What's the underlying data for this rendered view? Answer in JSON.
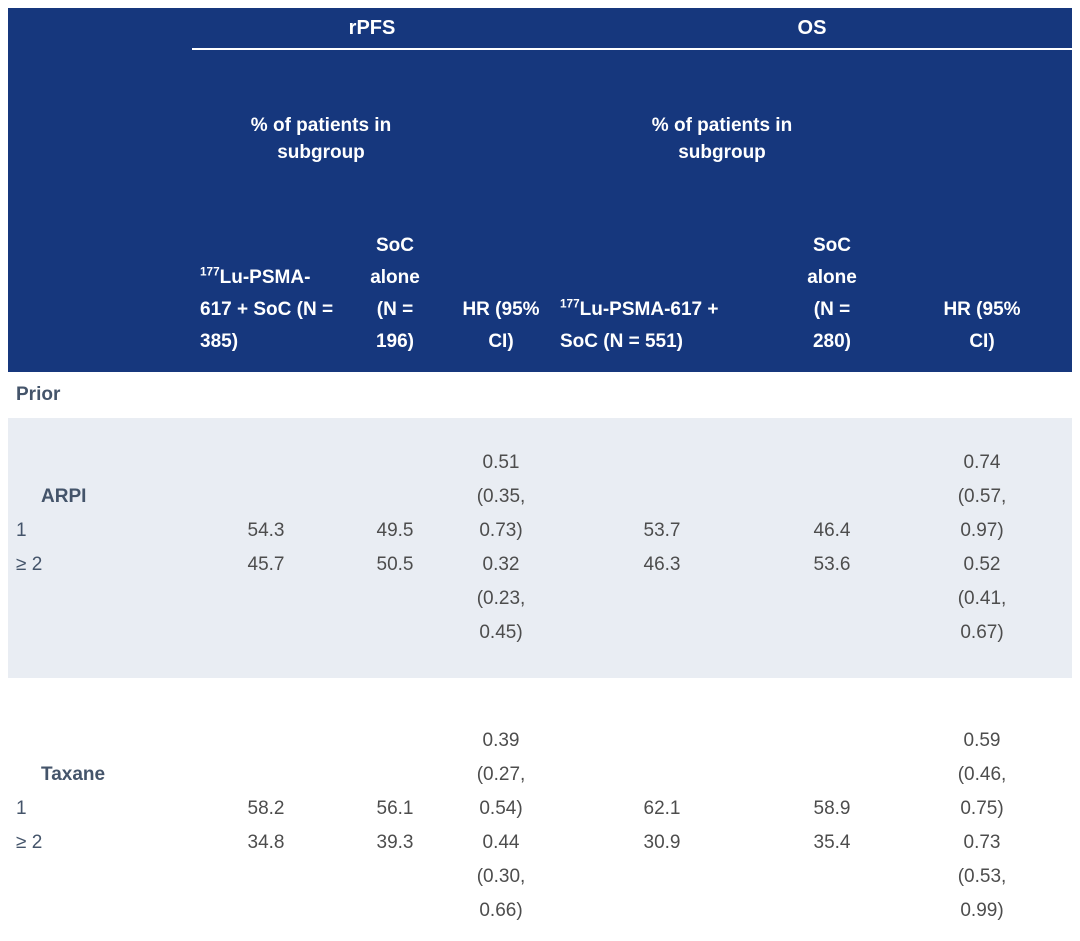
{
  "colors": {
    "header_bg": "#16377D",
    "header_text": "#FFFFFF",
    "band_bg": "#E9EDF3",
    "label_text": "#44546A",
    "value_text": "#4D4D4D",
    "underline": "#FFFFFF"
  },
  "table": {
    "header": {
      "groups": [
        {
          "label": "rPFS",
          "subheader": "% of patients in subgroup"
        },
        {
          "label": "OS",
          "subheader": "% of patients in subgroup"
        }
      ],
      "columns": [
        {
          "sup": "177",
          "text": "Lu-PSMA-617 + SoC (N = 385)"
        },
        {
          "text": "SoC alone (N = 196)"
        },
        {
          "text": "HR (95% CI)"
        },
        {
          "sup": "177",
          "text": "Lu-PSMA-617 + SoC (N = 551)"
        },
        {
          "text": "SoC alone (N = 280)"
        },
        {
          "text": "HR (95% CI)"
        }
      ]
    },
    "body": {
      "section": {
        "label": "Prior"
      },
      "groups": [
        {
          "name": "ARPI",
          "shaded": true,
          "rows": [
            {
              "label": "1",
              "rpfs": {
                "lu": "54.3",
                "soc": "49.5",
                "hr": "0.51 (0.35, 0.73)"
              },
              "os": {
                "lu": "53.7",
                "soc": "46.4",
                "hr": "0.74 (0.57, 0.97)"
              }
            },
            {
              "label": "≥ 2",
              "rpfs": {
                "lu": "45.7",
                "soc": "50.5",
                "hr": "0.32 (0.23, 0.45)"
              },
              "os": {
                "lu": "46.3",
                "soc": "53.6",
                "hr": "0.52 (0.41, 0.67)"
              }
            }
          ]
        },
        {
          "name": "Taxane",
          "shaded": false,
          "rows": [
            {
              "label": "1",
              "rpfs": {
                "lu": "58.2",
                "soc": "56.1",
                "hr": "0.39 (0.27, 0.54)"
              },
              "os": {
                "lu": "62.1",
                "soc": "58.9",
                "hr": "0.59 (0.46, 0.75)"
              }
            },
            {
              "label": "≥ 2",
              "rpfs": {
                "lu": "34.8",
                "soc": "39.3",
                "hr": "0.44 (0.30, 0.66)"
              },
              "os": {
                "lu": "30.9",
                "soc": "35.4",
                "hr": "0.73 (0.53, 0.99)"
              }
            }
          ]
        }
      ]
    }
  }
}
